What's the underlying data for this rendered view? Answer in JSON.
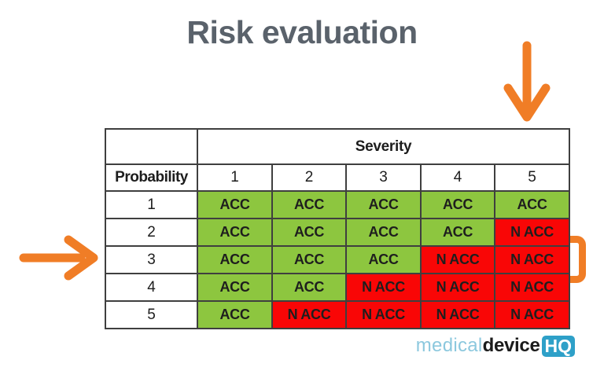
{
  "slide": {
    "title": "Risk evaluation"
  },
  "matrix": {
    "column_group_label": "Severity",
    "row_group_label": "Probability",
    "severity_levels": [
      "1",
      "2",
      "3",
      "4",
      "5"
    ],
    "probability_levels": [
      "1",
      "2",
      "3",
      "4",
      "5"
    ],
    "cell_labels": {
      "acceptable": "ACC",
      "not_acceptable": "N ACC"
    },
    "rows": [
      [
        "ACC",
        "ACC",
        "ACC",
        "ACC",
        "ACC"
      ],
      [
        "ACC",
        "ACC",
        "ACC",
        "ACC",
        "N ACC"
      ],
      [
        "ACC",
        "ACC",
        "ACC",
        "N ACC",
        "N ACC"
      ],
      [
        "ACC",
        "ACC",
        "N ACC",
        "N ACC",
        "N ACC"
      ],
      [
        "ACC",
        "N ACC",
        "N ACC",
        "N ACC",
        "N ACC"
      ]
    ]
  },
  "logo": {
    "medical": "medical",
    "device": "device",
    "hq": "HQ"
  },
  "colors": {
    "acceptable_green": "#8DC63F",
    "not_acceptable_red": "#F90606",
    "annotation_orange": "#F07D26",
    "title_gray": "#5A626B",
    "logo_light_blue": "#8CC8DE",
    "logo_badge_blue": "#2EA0C8"
  }
}
